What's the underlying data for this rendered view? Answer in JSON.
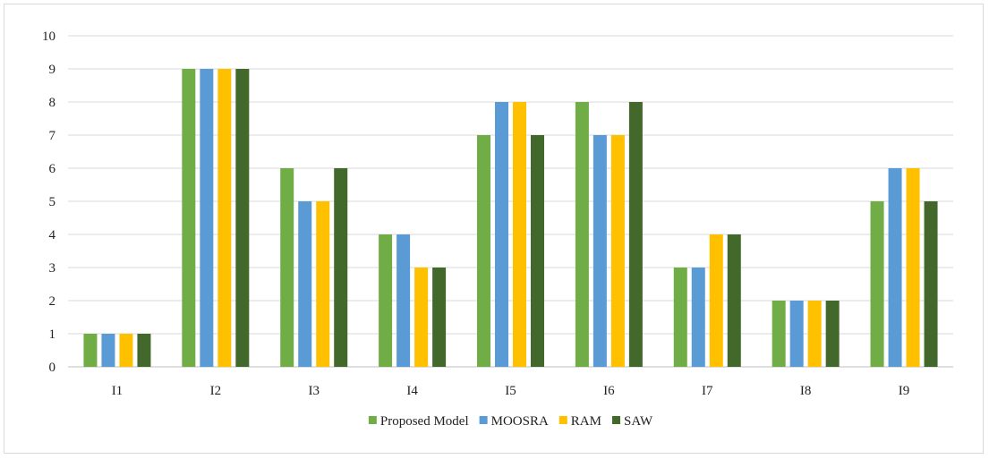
{
  "chart_data": {
    "type": "bar",
    "title": "",
    "xlabel": "",
    "ylabel": "",
    "categories": [
      "I1",
      "I2",
      "I3",
      "I4",
      "I5",
      "I6",
      "I7",
      "I8",
      "I9"
    ],
    "ylim": [
      0,
      10
    ],
    "yticks": [
      "0",
      "1",
      "2",
      "3",
      "4",
      "5",
      "6",
      "7",
      "8",
      "9",
      "10"
    ],
    "grid": true,
    "legend_position": "bottom",
    "series": [
      {
        "name": "Proposed Model",
        "color": "#70ad47",
        "values": [
          1,
          9,
          6,
          4,
          7,
          8,
          3,
          2,
          5
        ]
      },
      {
        "name": "MOOSRA",
        "color": "#5b9bd5",
        "values": [
          1,
          9,
          5,
          4,
          8,
          7,
          3,
          2,
          6
        ]
      },
      {
        "name": "RAM",
        "color": "#ffc000",
        "values": [
          1,
          9,
          5,
          3,
          8,
          7,
          4,
          2,
          6
        ]
      },
      {
        "name": "SAW",
        "color": "#43682b",
        "values": [
          1,
          9,
          6,
          3,
          7,
          8,
          4,
          2,
          5
        ]
      }
    ]
  }
}
